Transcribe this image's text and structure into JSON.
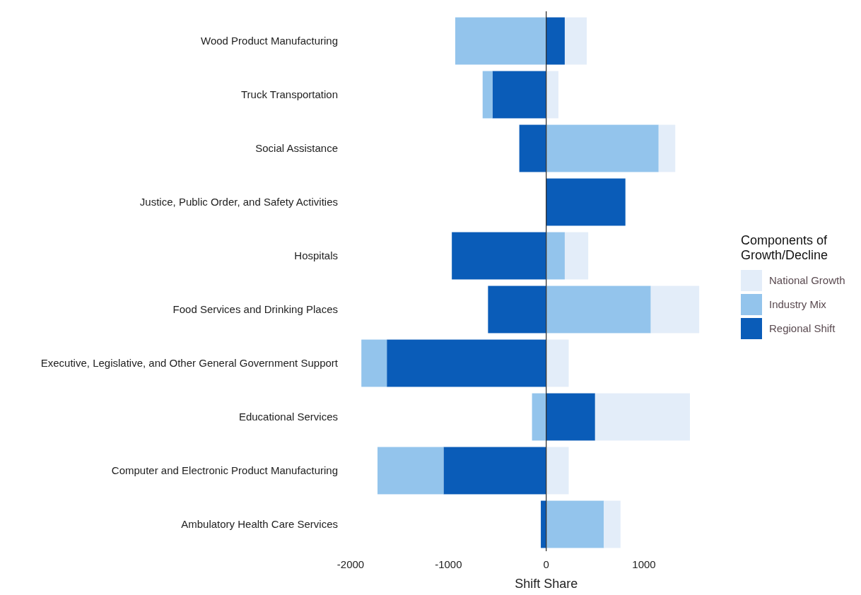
{
  "chart_data": {
    "type": "bar",
    "orientation": "horizontal",
    "stacked": true,
    "xlabel": "Shift Share",
    "legend_title": "Components of Growth/Decline",
    "legend": "right",
    "categories": [
      "Wood Product Manufacturing",
      "Truck Transportation",
      "Social Assistance",
      "Justice, Public Order, and Safety Activities",
      "Hospitals",
      "Food Services and Drinking Places",
      "Executive, Legislative, and Other General Government Support",
      "Educational Services",
      "Computer and Electronic Product Manufacturing",
      "Ambulatory Health Care Services"
    ],
    "series": [
      {
        "name": "Regional Shift",
        "color": "#0a5cb8",
        "values": [
          190,
          -550,
          -275,
          810,
          -965,
          -595,
          -1630,
          500,
          -1050,
          -55
        ]
      },
      {
        "name": "Industry Mix",
        "color": "#93c4ec",
        "values": [
          -930,
          -100,
          1150,
          0,
          190,
          1070,
          -260,
          -145,
          -675,
          590
        ]
      },
      {
        "name": "National Growth",
        "color": "#e3edf9",
        "values": [
          225,
          125,
          170,
          0,
          240,
          495,
          230,
          970,
          230,
          170
        ]
      }
    ],
    "xlim": [
      -2000,
      1600
    ],
    "xticks": [
      -2000,
      -1000,
      0,
      1000
    ],
    "ref_lines": [
      {
        "axis": "x",
        "value": 0,
        "color": "#333333"
      }
    ],
    "grid": false
  }
}
